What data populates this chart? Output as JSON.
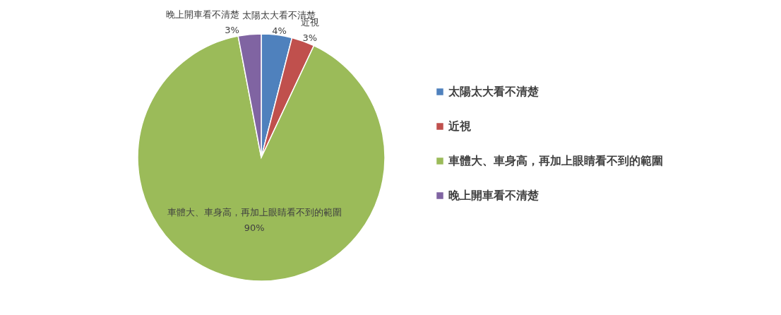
{
  "chart_data": {
    "type": "pie",
    "categories": [
      "太陽太大看不清楚",
      "近視",
      "車體大、車身高，再加上眼睛看不到的範圍",
      "晚上開車看不清楚"
    ],
    "values": [
      4,
      3,
      90,
      3
    ],
    "colors": [
      "#4f81bd",
      "#c0504d",
      "#9bbb59",
      "#8064a2"
    ],
    "value_labels": [
      "4%",
      "3%",
      "90%",
      "3%"
    ],
    "legend": "right"
  }
}
